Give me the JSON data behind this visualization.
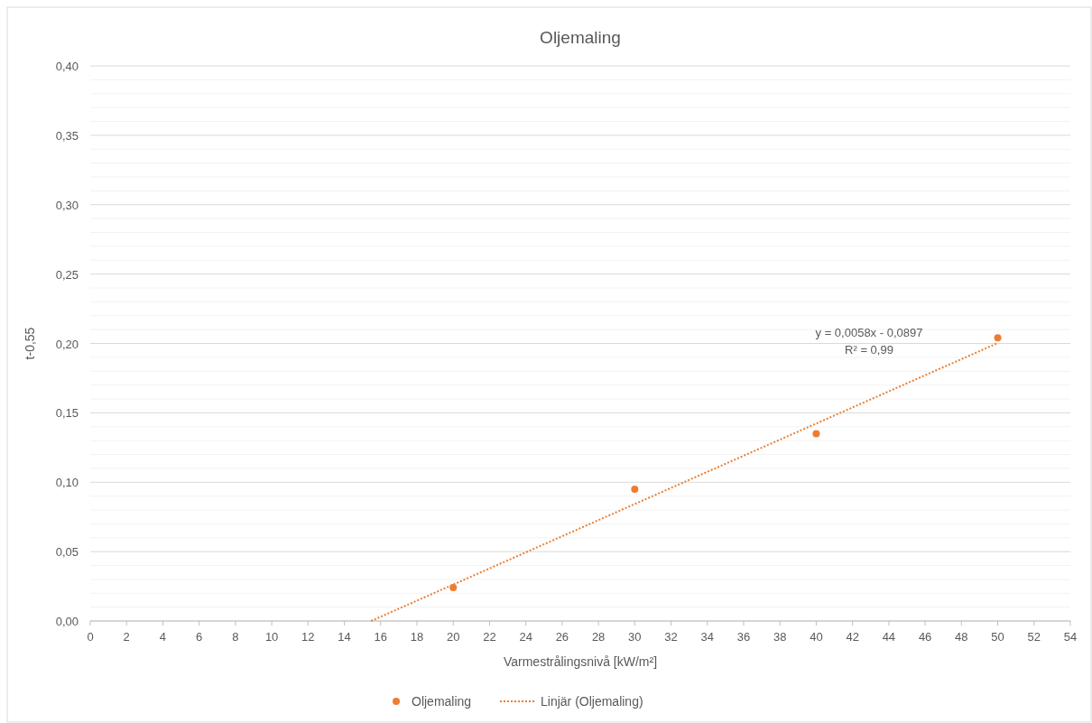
{
  "chart_data": {
    "type": "scatter",
    "title": "Oljemaling",
    "xlabel": "Varmestrålingsnivå [kW/m²]",
    "ylabel": "t-0,55",
    "xlim": [
      0,
      54
    ],
    "xticks": [
      0,
      2,
      4,
      6,
      8,
      10,
      12,
      14,
      16,
      18,
      20,
      22,
      24,
      26,
      28,
      30,
      32,
      34,
      36,
      38,
      40,
      42,
      44,
      46,
      48,
      50,
      52,
      54
    ],
    "ylim": [
      0,
      0.4
    ],
    "yticks": [
      {
        "value": 0,
        "label": "0,00"
      },
      {
        "value": 0.01,
        "label": null
      },
      {
        "value": 0.02,
        "label": null
      },
      {
        "value": 0.03,
        "label": null
      },
      {
        "value": 0.04,
        "label": null
      },
      {
        "value": 0.05,
        "label": "0,05"
      },
      {
        "value": 0.06,
        "label": null
      },
      {
        "value": 0.07,
        "label": null
      },
      {
        "value": 0.08,
        "label": null
      },
      {
        "value": 0.09,
        "label": null
      },
      {
        "value": 0.1,
        "label": "0,10"
      },
      {
        "value": 0.11,
        "label": null
      },
      {
        "value": 0.12,
        "label": null
      },
      {
        "value": 0.13,
        "label": null
      },
      {
        "value": 0.14,
        "label": null
      },
      {
        "value": 0.15,
        "label": "0,15"
      },
      {
        "value": 0.16,
        "label": null
      },
      {
        "value": 0.17,
        "label": null
      },
      {
        "value": 0.18,
        "label": null
      },
      {
        "value": 0.19,
        "label": null
      },
      {
        "value": 0.2,
        "label": "0,20"
      },
      {
        "value": 0.21,
        "label": null
      },
      {
        "value": 0.22,
        "label": null
      },
      {
        "value": 0.23,
        "label": null
      },
      {
        "value": 0.24,
        "label": null
      },
      {
        "value": 0.25,
        "label": "0,25"
      },
      {
        "value": 0.26,
        "label": null
      },
      {
        "value": 0.27,
        "label": null
      },
      {
        "value": 0.28,
        "label": null
      },
      {
        "value": 0.29,
        "label": null
      },
      {
        "value": 0.3,
        "label": "0,30"
      },
      {
        "value": 0.31,
        "label": null
      },
      {
        "value": 0.32,
        "label": null
      },
      {
        "value": 0.33,
        "label": null
      },
      {
        "value": 0.34,
        "label": null
      },
      {
        "value": 0.35,
        "label": "0,35"
      },
      {
        "value": 0.36,
        "label": null
      },
      {
        "value": 0.37,
        "label": null
      },
      {
        "value": 0.38,
        "label": null
      },
      {
        "value": 0.39,
        "label": null
      },
      {
        "value": 0.4,
        "label": "0,40"
      }
    ],
    "grid": "y",
    "legend": "bottom",
    "series": [
      {
        "name": "Oljemaling",
        "marker": "circle",
        "color": "#ed7d31",
        "x": [
          20,
          30,
          40,
          50
        ],
        "values": [
          0.024,
          0.095,
          0.135,
          0.204
        ]
      },
      {
        "name": "Linjär (Oljemaling)",
        "type": "line",
        "marker": "none",
        "line_style": "dotted",
        "color": "#ed7d31",
        "x": [
          15.47,
          50
        ],
        "values": [
          0,
          0.2003
        ]
      }
    ],
    "annotations": [
      "y = 0,0058x  - 0,0897",
      "R² = 0,99"
    ]
  }
}
